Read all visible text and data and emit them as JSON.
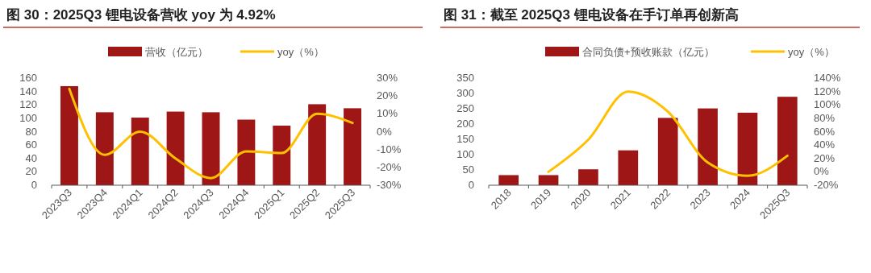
{
  "chart_data": [
    {
      "type": "bar",
      "title": "图 30：2025Q3 锂电设备营收 yoy 为 4.92%",
      "categories": [
        "2023Q3",
        "2023Q4",
        "2024Q1",
        "2024Q2",
        "2024Q3",
        "2024Q4",
        "2025Q1",
        "2025Q2",
        "2025Q3"
      ],
      "series": [
        {
          "name": "营收（亿元）",
          "color": "#9e1616",
          "values": [
            148,
            109,
            101,
            110,
            109,
            98,
            89,
            121,
            115
          ]
        },
        {
          "name": "yoy（%）",
          "type": "line",
          "axis": "y2",
          "color": "#ffc000",
          "values": [
            24,
            -13,
            0,
            -15,
            -26,
            -11,
            -12,
            10,
            4.92
          ]
        }
      ],
      "ylim": [
        0,
        160
      ],
      "yticks": [
        0,
        20,
        40,
        60,
        80,
        100,
        120,
        140,
        160
      ],
      "y2lim": [
        -30,
        30
      ],
      "y2ticks": [
        {
          "value": -30,
          "label": "-30%"
        },
        {
          "value": -20,
          "label": "-20%"
        },
        {
          "value": -10,
          "label": "-10%"
        },
        {
          "value": 0,
          "label": "0%"
        },
        {
          "value": 10,
          "label": "10%"
        },
        {
          "value": 20,
          "label": "20%"
        },
        {
          "value": 30,
          "label": "30%"
        }
      ],
      "legend": "top",
      "grid": false,
      "marker": "none"
    },
    {
      "type": "bar",
      "title": "图 31：截至 2025Q3 锂电设备在手订单再创新高",
      "categories": [
        "2018",
        "2019",
        "2020",
        "2021",
        "2022",
        "2023",
        "2024",
        "2025Q3"
      ],
      "series": [
        {
          "name": "合同负债+预收账款（亿元）",
          "color": "#9e1616",
          "values": [
            33,
            33,
            52,
            114,
            220,
            251,
            237,
            289
          ]
        },
        {
          "name": "yoy（%）",
          "type": "line",
          "axis": "y2",
          "color": "#ffc000",
          "values": [
            null,
            0,
            48,
            120,
            90,
            14,
            -6,
            24
          ]
        }
      ],
      "ylim": [
        0,
        350
      ],
      "yticks": [
        0,
        50,
        100,
        150,
        200,
        250,
        300,
        350
      ],
      "y2lim": [
        -20,
        140
      ],
      "y2ticks": [
        {
          "value": -20,
          "label": "-20%"
        },
        {
          "value": 0,
          "label": "0%"
        },
        {
          "value": 20,
          "label": "20%"
        },
        {
          "value": 40,
          "label": "40%"
        },
        {
          "value": 60,
          "label": "60%"
        },
        {
          "value": 80,
          "label": "80%"
        },
        {
          "value": 100,
          "label": "100%"
        },
        {
          "value": 120,
          "label": "120%"
        },
        {
          "value": 140,
          "label": "140%"
        }
      ],
      "legend": "top",
      "grid": false,
      "marker": "none"
    }
  ]
}
